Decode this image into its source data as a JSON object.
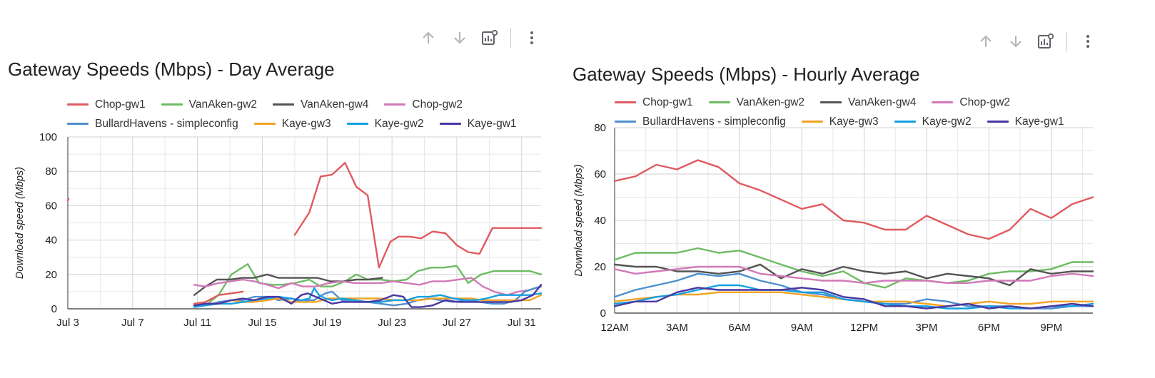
{
  "colors": {
    "Chop-gw1": "#e05a5f",
    "VanAken-gw2": "#6dbb63",
    "VanAken-gw4": "#545454",
    "Chop-gw2": "#d178b8",
    "BullardHavens - simpleconfig": "#4e8fce",
    "Kaye-gw3": "#f2a326",
    "Kaye-gw2": "#159fe0",
    "Kaye-gw1": "#4a36a3"
  },
  "toolbar_icons": [
    "arrow-up-icon",
    "arrow-down-icon",
    "chart-settings-icon",
    "more-vert-icon"
  ],
  "chart_data": [
    {
      "type": "line",
      "title": "Gateway Speeds (Mbps) - Day Average",
      "ylabel": "Download speed (Mbps)",
      "xlabel": "",
      "ylim": [
        0,
        100
      ],
      "yticks": [
        0,
        20,
        40,
        60,
        80,
        100
      ],
      "xlim": [
        3,
        32.2
      ],
      "xticks": [
        {
          "x": 3,
          "label": "Jul 3"
        },
        {
          "x": 7,
          "label": "Jul 7"
        },
        {
          "x": 11,
          "label": "Jul 11"
        },
        {
          "x": 15,
          "label": "Jul 15"
        },
        {
          "x": 19,
          "label": "Jul 19"
        },
        {
          "x": 23,
          "label": "Jul 23"
        },
        {
          "x": 27,
          "label": "Jul 27"
        },
        {
          "x": 31,
          "label": "Jul 31"
        }
      ],
      "grid": true,
      "legend_position": "top",
      "legend_rows": [
        [
          "Chop-gw1",
          "VanAken-gw2",
          "VanAken-gw4",
          "Chop-gw2"
        ],
        [
          "BullardHavens - simpleconfig",
          "Kaye-gw3",
          "Kaye-gw2",
          "Kaye-gw1"
        ]
      ],
      "series": [
        {
          "name": "VanAken-gw2",
          "x": [
            10.8,
            11.5,
            12.3,
            13.1,
            14.1,
            14.8,
            15.6,
            16.2,
            17.0,
            17.9,
            18.6,
            19.3,
            20.1,
            20.8,
            21.5,
            22.3,
            23.1,
            23.9,
            24.6,
            25.4,
            26.2,
            27.0,
            27.7,
            28.5,
            29.3,
            30.1,
            30.8,
            31.5,
            32.2
          ],
          "y": [
            2,
            2,
            8,
            20,
            26,
            15,
            14,
            14,
            15,
            17,
            13,
            13,
            16,
            20,
            17,
            17,
            16,
            17,
            22,
            24,
            24,
            25,
            15,
            20,
            22,
            22,
            22,
            22,
            20
          ]
        },
        {
          "name": "VanAken-gw4",
          "x": [
            10.8,
            11.5,
            12.2,
            13.0,
            13.8,
            14.5,
            15.3,
            16.0,
            16.8,
            17.6,
            18.4,
            19.2,
            20.0,
            20.8,
            21.5,
            22.4
          ],
          "y": [
            8,
            13,
            17,
            17,
            18,
            18,
            20,
            18,
            18,
            18,
            18,
            16,
            16,
            17,
            17,
            18
          ]
        },
        {
          "name": "Chop-gw2",
          "x": [
            10.8,
            11.5,
            12.3,
            13.1,
            13.8,
            14.5,
            15.3,
            16.0,
            16.8,
            17.5,
            18.3,
            19.1,
            19.9,
            20.7,
            21.5,
            22.3,
            23.1,
            23.9,
            24.7,
            25.5,
            26.3,
            27.1,
            27.9,
            28.6,
            29.3,
            30.1,
            30.8,
            31.5,
            32.2
          ],
          "y": [
            14,
            13,
            15,
            16,
            17,
            16,
            14,
            12,
            15,
            13,
            13,
            15,
            16,
            15,
            15,
            15,
            16,
            15,
            14,
            16,
            16,
            17,
            18,
            13,
            10,
            8,
            10,
            11,
            13
          ]
        },
        {
          "name": "BullardHavens - simpleconfig",
          "x": [
            10.8,
            11.5,
            12.3,
            13.1,
            13.8,
            14.5,
            15.3,
            16.0,
            16.8,
            17.4,
            17.9,
            18.2,
            18.5,
            18.9,
            19.3,
            19.9,
            20.7,
            21.5,
            22.3,
            23.1,
            23.9,
            24.6,
            25.3,
            26.0,
            26.8,
            27.6,
            28.4,
            29.2,
            29.9,
            30.6,
            31.2,
            31.8,
            32.2
          ],
          "y": [
            2,
            2,
            4,
            5,
            5,
            7,
            7,
            5,
            6,
            4,
            5,
            5,
            7,
            9,
            10,
            5,
            4,
            4,
            3,
            2,
            3,
            5,
            6,
            5,
            4,
            5,
            4,
            3,
            3,
            5,
            10,
            12,
            13
          ]
        },
        {
          "name": "Kaye-gw3",
          "x": [
            10.8,
            11.5,
            12.3,
            13.1,
            13.8,
            14.5,
            15.3,
            16.0,
            16.8,
            17.5,
            18.3,
            19.1,
            19.9,
            20.7,
            21.5,
            22.3,
            23.1,
            23.9,
            24.7,
            25.5,
            26.3,
            27.1,
            27.9,
            28.6,
            29.4,
            30.1,
            30.8,
            31.5,
            32.2
          ],
          "y": [
            3,
            3,
            3,
            5,
            4,
            4,
            5,
            6,
            4,
            4,
            4,
            6,
            6,
            6,
            6,
            6,
            5,
            5,
            5,
            6,
            6,
            6,
            6,
            5,
            5,
            5,
            5,
            5,
            8
          ]
        },
        {
          "name": "Kaye-gw2",
          "x": [
            10.8,
            11.5,
            12.3,
            13.1,
            13.8,
            14.5,
            15.3,
            16.0,
            16.8,
            17.4,
            17.9,
            18.2,
            18.5,
            18.9,
            19.3,
            19.9,
            20.7,
            21.5,
            22.3,
            23.1,
            23.9,
            24.6,
            25.3,
            26.0,
            26.8,
            27.6,
            28.2,
            28.8,
            29.2,
            29.6,
            30.0,
            30.5,
            31.0,
            31.5,
            32.2
          ],
          "y": [
            1,
            2,
            3,
            3,
            4,
            5,
            6,
            7,
            6,
            5,
            6,
            12,
            8,
            6,
            5,
            6,
            5,
            4,
            4,
            5,
            5,
            7,
            7,
            8,
            6,
            5,
            5,
            6,
            7,
            8,
            8,
            8,
            8,
            8,
            9
          ]
        },
        {
          "name": "Kaye-gw1",
          "x": [
            10.8,
            11.5,
            12.3,
            13.1,
            13.8,
            14.5,
            15.3,
            16.0,
            16.8,
            17.4,
            17.8,
            18.3,
            18.8,
            19.3,
            19.9,
            20.7,
            21.5,
            22.3,
            23.1,
            23.7,
            24.2,
            24.8,
            25.5,
            26.3,
            27.1,
            27.9,
            28.7,
            29.5,
            30.3,
            31.0,
            31.7,
            32.2
          ],
          "y": [
            2,
            3,
            3,
            5,
            6,
            5,
            7,
            7,
            3,
            8,
            9,
            7,
            5,
            3,
            4,
            4,
            4,
            5,
            8,
            7,
            1,
            1,
            2,
            5,
            4,
            4,
            4,
            4,
            4,
            5,
            8,
            14
          ]
        },
        {
          "name": "Chop-gw1",
          "x": [
            17.0,
            17.9,
            18.6,
            19.3,
            20.1,
            20.8,
            21.5,
            22.2,
            22.9,
            23.4,
            24.1,
            24.8,
            25.5,
            26.3,
            27.0,
            27.7,
            28.4,
            29.2,
            29.9,
            30.6,
            31.2,
            31.8,
            32.2
          ],
          "y": [
            43,
            56,
            77,
            78,
            85,
            71,
            66,
            24,
            39,
            42,
            42,
            41,
            45,
            44,
            37,
            33,
            32,
            47,
            47,
            47,
            47,
            47,
            47
          ]
        },
        {
          "name": "Chop-gw1",
          "x": [
            3.0,
            3.05
          ],
          "y": [
            63,
            64
          ]
        },
        {
          "name": "Chop-gw1",
          "x": [
            10.8,
            11.5,
            12.3,
            13.1,
            13.8
          ],
          "y": [
            3,
            4,
            8,
            9,
            10
          ]
        }
      ]
    },
    {
      "type": "line",
      "title": "Gateway Speeds (Mbps) - Hourly Average",
      "ylabel": "Download speed (Mbps)",
      "xlabel": "",
      "ylim": [
        0,
        80
      ],
      "yticks": [
        0,
        20,
        40,
        60,
        80
      ],
      "xlim": [
        0,
        23
      ],
      "xticks": [
        {
          "x": 0,
          "label": "12AM"
        },
        {
          "x": 3,
          "label": "3AM"
        },
        {
          "x": 6,
          "label": "6AM"
        },
        {
          "x": 9,
          "label": "9AM"
        },
        {
          "x": 12,
          "label": "12PM"
        },
        {
          "x": 15,
          "label": "3PM"
        },
        {
          "x": 18,
          "label": "6PM"
        },
        {
          "x": 21,
          "label": "9PM"
        }
      ],
      "grid": true,
      "legend_position": "top",
      "legend_rows": [
        [
          "Chop-gw1",
          "VanAken-gw2",
          "VanAken-gw4",
          "Chop-gw2"
        ],
        [
          "BullardHavens - simpleconfig",
          "Kaye-gw3",
          "Kaye-gw2",
          "Kaye-gw1"
        ]
      ],
      "series": [
        {
          "name": "Chop-gw1",
          "x": [
            0,
            1,
            2,
            3,
            4,
            5,
            6,
            7,
            8,
            9,
            10,
            11,
            12,
            13,
            14,
            15,
            16,
            17,
            18,
            19,
            20,
            21,
            22,
            23
          ],
          "y": [
            57,
            59,
            64,
            62,
            66,
            63,
            56,
            53,
            49,
            45,
            47,
            40,
            39,
            36,
            36,
            42,
            38,
            34,
            32,
            36,
            45,
            41,
            47,
            50
          ]
        },
        {
          "name": "VanAken-gw2",
          "x": [
            0,
            1,
            2,
            3,
            4,
            5,
            6,
            7,
            8,
            9,
            10,
            11,
            12,
            13,
            14,
            15,
            16,
            17,
            18,
            19,
            20,
            21,
            22,
            23
          ],
          "y": [
            23,
            26,
            26,
            26,
            28,
            26,
            27,
            24,
            21,
            18,
            16,
            18,
            13,
            11,
            15,
            14,
            13,
            14,
            17,
            18,
            18,
            19,
            22,
            22
          ]
        },
        {
          "name": "VanAken-gw4",
          "x": [
            0,
            1,
            2,
            3,
            4,
            5,
            6,
            7,
            8,
            9,
            10,
            11,
            12,
            13,
            14,
            15,
            16,
            17,
            18,
            19,
            20,
            21,
            22,
            23
          ],
          "y": [
            21,
            20,
            20,
            18,
            18,
            17,
            18,
            21,
            15,
            19,
            17,
            20,
            18,
            17,
            18,
            15,
            17,
            16,
            15,
            12,
            19,
            17,
            18,
            18
          ]
        },
        {
          "name": "Chop-gw2",
          "x": [
            0,
            1,
            2,
            3,
            4,
            5,
            6,
            7,
            8,
            9,
            10,
            11,
            12,
            13,
            14,
            15,
            16,
            17,
            18,
            19,
            20,
            21,
            22,
            23
          ],
          "y": [
            19,
            17,
            18,
            19,
            20,
            20,
            20,
            17,
            16,
            15,
            14,
            14,
            13,
            14,
            14,
            14,
            13,
            13,
            14,
            14,
            14,
            16,
            17,
            16
          ]
        },
        {
          "name": "BullardHavens - simpleconfig",
          "x": [
            0,
            1,
            2,
            3,
            4,
            5,
            6,
            7,
            8,
            9,
            10,
            11,
            12,
            13,
            14,
            15,
            16,
            17,
            18,
            19,
            20,
            21,
            22,
            23
          ],
          "y": [
            7,
            10,
            12,
            14,
            17,
            16,
            17,
            14,
            12,
            9,
            8,
            6,
            5,
            4,
            4,
            6,
            5,
            3,
            3,
            3,
            2,
            2,
            3,
            3
          ]
        },
        {
          "name": "Kaye-gw3",
          "x": [
            0,
            1,
            2,
            3,
            4,
            5,
            6,
            7,
            8,
            9,
            10,
            11,
            12,
            13,
            14,
            15,
            16,
            17,
            18,
            19,
            20,
            21,
            22,
            23
          ],
          "y": [
            5,
            6,
            7,
            8,
            8,
            9,
            9,
            9,
            9,
            8,
            7,
            6,
            5,
            5,
            5,
            4,
            3,
            4,
            5,
            4,
            4,
            5,
            5,
            5
          ]
        },
        {
          "name": "Kaye-gw2",
          "x": [
            0,
            1,
            2,
            3,
            4,
            5,
            6,
            7,
            8,
            9,
            10,
            11,
            12,
            13,
            14,
            15,
            16,
            17,
            18,
            19,
            20,
            21,
            22,
            23
          ],
          "y": [
            4,
            5,
            7,
            8,
            10,
            12,
            12,
            10,
            10,
            9,
            9,
            6,
            5,
            4,
            3,
            3,
            2,
            2,
            3,
            2,
            2,
            3,
            3,
            4
          ]
        },
        {
          "name": "Kaye-gw1",
          "x": [
            0,
            1,
            2,
            3,
            4,
            5,
            6,
            7,
            8,
            9,
            10,
            11,
            12,
            13,
            14,
            15,
            16,
            17,
            18,
            19,
            20,
            21,
            22,
            23
          ],
          "y": [
            3,
            5,
            5,
            9,
            11,
            10,
            10,
            10,
            10,
            11,
            10,
            7,
            6,
            3,
            3,
            2,
            3,
            4,
            2,
            3,
            2,
            3,
            4,
            3
          ]
        }
      ]
    }
  ]
}
